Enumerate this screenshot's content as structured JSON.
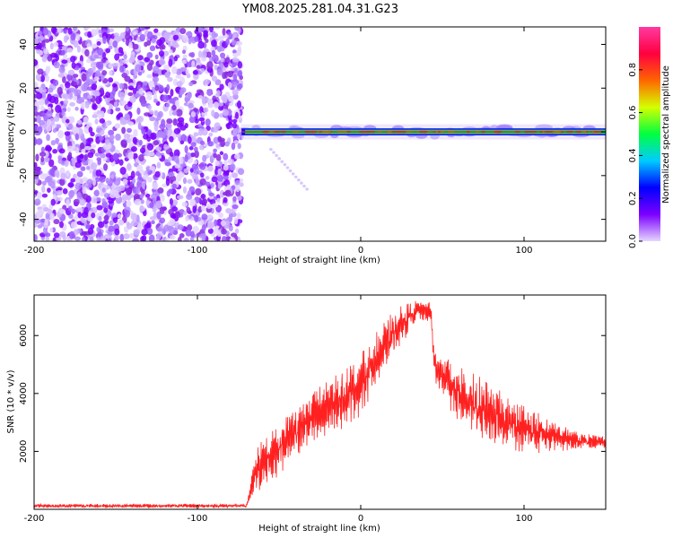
{
  "title": "YM08.2025.281.04.31.G23",
  "chart_data": [
    {
      "type": "heatmap",
      "name": "spectrogram",
      "xlabel": "Height of straight line (km)",
      "ylabel": "Frequency (Hz)",
      "xlim": [
        -200,
        150
      ],
      "ylim": [
        -50,
        48
      ],
      "xticks": [
        -200,
        -100,
        0,
        100
      ],
      "yticks": [
        -40,
        -20,
        0,
        20,
        40
      ],
      "noise_region_x": [
        -200,
        -73
      ],
      "signal_region_x": [
        -73,
        150
      ],
      "signal_center_frequency": 0,
      "colorbar": {
        "label": "Normalized spectral amplitude",
        "range": [
          0.0,
          1.0
        ],
        "ticks": [
          0.0,
          0.2,
          0.4,
          0.6,
          0.8
        ],
        "colors": [
          "#e6d6ff",
          "#7b00ff",
          "#0000ff",
          "#00ccff",
          "#00ff40",
          "#d4ff00",
          "#ff6600",
          "#ff0040",
          "#ff3aa0"
        ]
      }
    },
    {
      "type": "line",
      "name": "snr",
      "xlabel": "Height of straight line (km)",
      "ylabel": "SNR (10 * v/v)",
      "xlim": [
        -200,
        150
      ],
      "ylim": [
        0,
        7400
      ],
      "xticks": [
        -200,
        -100,
        0,
        100
      ],
      "yticks": [
        2000,
        4000,
        6000
      ],
      "color": "#ff2020",
      "envelope": {
        "x": [
          -200,
          -70,
          -64,
          -55,
          -40,
          -20,
          0,
          20,
          35,
          43,
          45,
          55,
          70,
          90,
          110,
          130,
          150
        ],
        "mid": [
          120,
          120,
          1300,
          1900,
          2700,
          3500,
          4300,
          6100,
          6900,
          6800,
          5000,
          4300,
          3500,
          3000,
          2600,
          2400,
          2300
        ],
        "amp": [
          60,
          60,
          700,
          800,
          900,
          900,
          900,
          700,
          300,
          300,
          500,
          900,
          1000,
          800,
          600,
          300,
          200
        ]
      }
    }
  ]
}
